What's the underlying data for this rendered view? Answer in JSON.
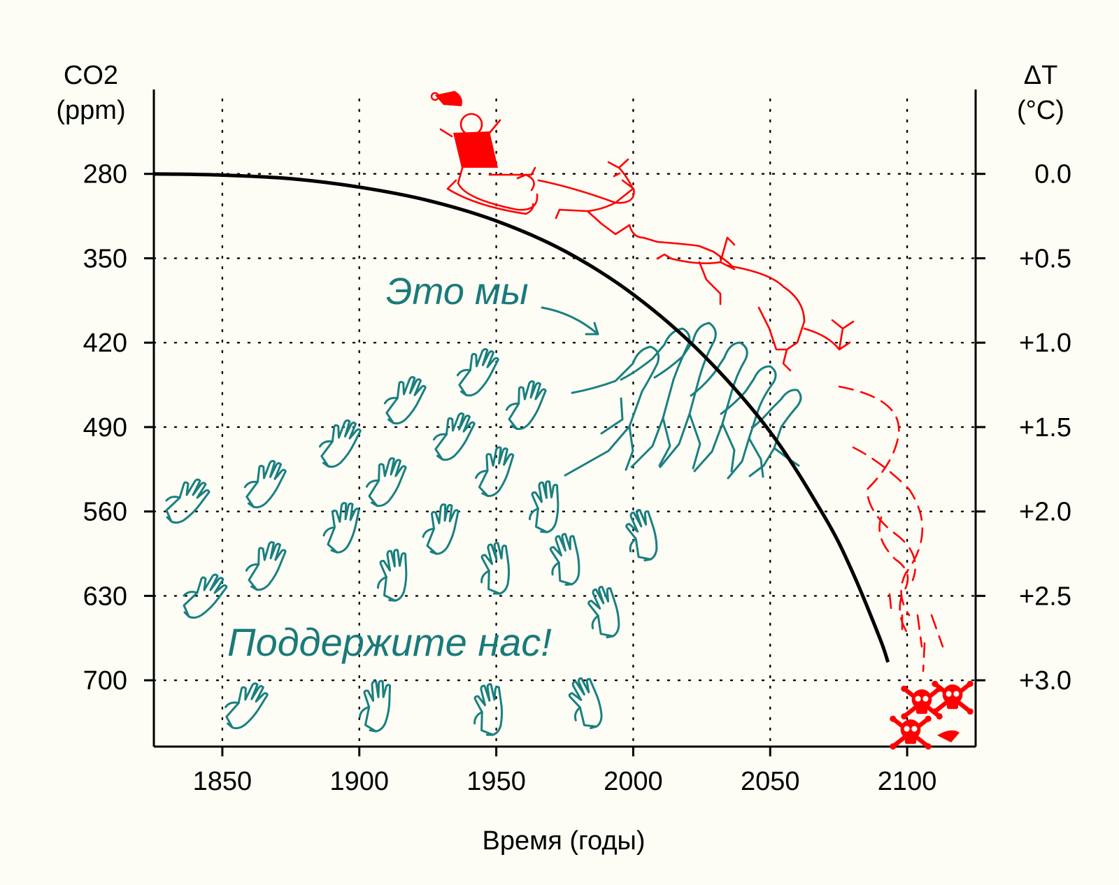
{
  "chart_data": {
    "type": "line",
    "xlabel": "Время (годы)",
    "ylabel_left": [
      "CO2",
      "(ppm)"
    ],
    "ylabel_right": [
      "ΔT",
      "(°C)"
    ],
    "x_ticks": [
      1850,
      1900,
      1950,
      2000,
      2050,
      2100
    ],
    "left_y_ticks": [
      280,
      350,
      420,
      490,
      560,
      630,
      700
    ],
    "right_y_ticks": [
      "0.0",
      "+0.5",
      "+1.0",
      "+1.5",
      "+2.0",
      "+2.5",
      "+3.0"
    ],
    "xlim": [
      1825,
      2125
    ],
    "ylim": [
      210,
      755
    ],
    "grid": true,
    "series": [
      {
        "x": [
          1825,
          1850,
          1875,
          1900,
          1925,
          1950,
          1975,
          2000,
          2025,
          2050,
          2070,
          2080,
          2090,
          2093
        ],
        "y": [
          280,
          281,
          284,
          291,
          302,
          319,
          344,
          380,
          429,
          494,
          565,
          610,
          665,
          685
        ]
      }
    ],
    "annotations": {
      "us": "Это мы",
      "support": "Поддержите нас!"
    },
    "colors": {
      "curve": "#000000",
      "people": "#1a7f80",
      "santa": "#ff0000"
    },
    "icons": [
      "santa-sleigh-icon",
      "reindeer-icon",
      "people-pushing-icon",
      "hand-icon",
      "skull-crossbones-icon"
    ]
  }
}
